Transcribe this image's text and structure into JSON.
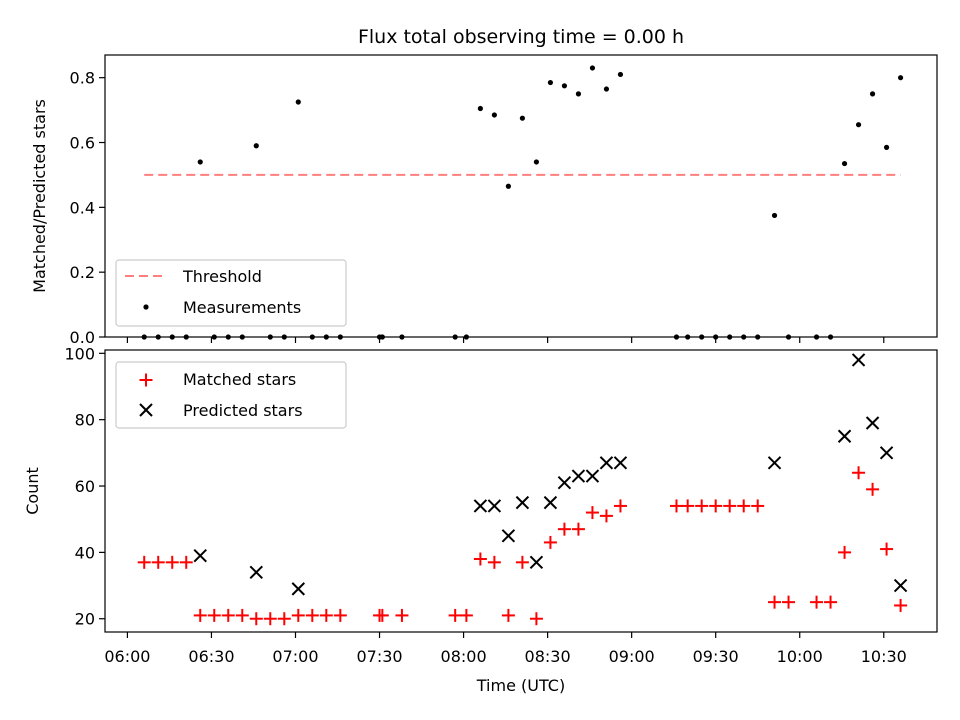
{
  "chart_data": [
    {
      "type": "scatter",
      "title": "Flux total observing time = 0.00 h",
      "xlabel": "",
      "ylabel": "Matched/Predicted stars",
      "ylim": [
        0,
        0.87
      ],
      "yticks": [
        "0.0",
        "0.2",
        "0.4",
        "0.6",
        "0.8"
      ],
      "ytick_values": [
        0,
        0.2,
        0.4,
        0.6,
        0.8
      ],
      "legend_position": "lower-left",
      "threshold": {
        "name": "Threshold",
        "value": 0.5,
        "x_start": "06:06",
        "x_end": "10:36",
        "color": "#ff7f7f"
      },
      "series": [
        {
          "name": "Measurements",
          "color": "#000000",
          "points": [
            [
              "06:06",
              0
            ],
            [
              "06:11",
              0
            ],
            [
              "06:16",
              0
            ],
            [
              "06:21",
              0
            ],
            [
              "06:26",
              0.54
            ],
            [
              "06:31",
              0
            ],
            [
              "06:36",
              0
            ],
            [
              "06:41",
              0
            ],
            [
              "06:46",
              0.59
            ],
            [
              "06:51",
              0
            ],
            [
              "06:56",
              0
            ],
            [
              "07:01",
              0.725
            ],
            [
              "07:06",
              0
            ],
            [
              "07:11",
              0
            ],
            [
              "07:16",
              0
            ],
            [
              "07:30",
              0
            ],
            [
              "07:31",
              0
            ],
            [
              "07:38",
              0
            ],
            [
              "07:57",
              0
            ],
            [
              "08:01",
              0
            ],
            [
              "08:06",
              0.705
            ],
            [
              "08:11",
              0.685
            ],
            [
              "08:16",
              0.465
            ],
            [
              "08:21",
              0.675
            ],
            [
              "08:26",
              0.54
            ],
            [
              "08:31",
              0.785
            ],
            [
              "08:36",
              0.775
            ],
            [
              "08:41",
              0.75
            ],
            [
              "08:46",
              0.83
            ],
            [
              "08:51",
              0.765
            ],
            [
              "08:56",
              0.81
            ],
            [
              "09:16",
              0
            ],
            [
              "09:20",
              0
            ],
            [
              "09:25",
              0
            ],
            [
              "09:30",
              0
            ],
            [
              "09:35",
              0
            ],
            [
              "09:40",
              0
            ],
            [
              "09:45",
              0
            ],
            [
              "09:51",
              0.375
            ],
            [
              "09:56",
              0
            ],
            [
              "10:06",
              0
            ],
            [
              "10:11",
              0
            ],
            [
              "10:16",
              0.535
            ],
            [
              "10:21",
              0.655
            ],
            [
              "10:26",
              0.75
            ],
            [
              "10:31",
              0.585
            ],
            [
              "10:36",
              0.8
            ]
          ]
        }
      ]
    },
    {
      "type": "scatter",
      "title": "",
      "xlabel": "Time (UTC)",
      "ylabel": "Count",
      "xlim": [
        "05:52",
        "10:49"
      ],
      "ylim": [
        16,
        101
      ],
      "xticks": [
        "06:00",
        "06:30",
        "07:00",
        "07:30",
        "08:00",
        "08:30",
        "09:00",
        "09:30",
        "10:00",
        "10:30"
      ],
      "yticks": [
        "20",
        "40",
        "60",
        "80",
        "100"
      ],
      "ytick_values": [
        20,
        40,
        60,
        80,
        100
      ],
      "legend_position": "top-left",
      "series": [
        {
          "name": "Matched stars",
          "marker": "plus",
          "color": "#ff0000",
          "points": [
            [
              "06:06",
              37
            ],
            [
              "06:11",
              37
            ],
            [
              "06:16",
              37
            ],
            [
              "06:21",
              37
            ],
            [
              "06:26",
              21
            ],
            [
              "06:31",
              21
            ],
            [
              "06:36",
              21
            ],
            [
              "06:41",
              21
            ],
            [
              "06:46",
              20
            ],
            [
              "06:51",
              20
            ],
            [
              "06:56",
              20
            ],
            [
              "07:01",
              21
            ],
            [
              "07:06",
              21
            ],
            [
              "07:11",
              21
            ],
            [
              "07:16",
              21
            ],
            [
              "07:30",
              21
            ],
            [
              "07:31",
              21
            ],
            [
              "07:38",
              21
            ],
            [
              "07:57",
              21
            ],
            [
              "08:01",
              21
            ],
            [
              "08:06",
              38
            ],
            [
              "08:11",
              37
            ],
            [
              "08:16",
              21
            ],
            [
              "08:21",
              37
            ],
            [
              "08:26",
              20
            ],
            [
              "08:31",
              43
            ],
            [
              "08:36",
              47
            ],
            [
              "08:41",
              47
            ],
            [
              "08:46",
              52
            ],
            [
              "08:51",
              51
            ],
            [
              "08:56",
              54
            ],
            [
              "09:16",
              54
            ],
            [
              "09:20",
              54
            ],
            [
              "09:25",
              54
            ],
            [
              "09:30",
              54
            ],
            [
              "09:35",
              54
            ],
            [
              "09:40",
              54
            ],
            [
              "09:45",
              54
            ],
            [
              "09:51",
              25
            ],
            [
              "09:56",
              25
            ],
            [
              "10:06",
              25
            ],
            [
              "10:11",
              25
            ],
            [
              "10:16",
              40
            ],
            [
              "10:21",
              64
            ],
            [
              "10:26",
              59
            ],
            [
              "10:31",
              41
            ],
            [
              "10:36",
              24
            ]
          ]
        },
        {
          "name": "Predicted stars",
          "marker": "x",
          "color": "#000000",
          "points": [
            [
              "06:26",
              39
            ],
            [
              "06:46",
              34
            ],
            [
              "07:01",
              29
            ],
            [
              "08:06",
              54
            ],
            [
              "08:11",
              54
            ],
            [
              "08:16",
              45
            ],
            [
              "08:21",
              55
            ],
            [
              "08:26",
              37
            ],
            [
              "08:31",
              55
            ],
            [
              "08:36",
              61
            ],
            [
              "08:41",
              63
            ],
            [
              "08:46",
              63
            ],
            [
              "08:51",
              67
            ],
            [
              "08:56",
              67
            ],
            [
              "09:51",
              67
            ],
            [
              "10:16",
              75
            ],
            [
              "10:21",
              98
            ],
            [
              "10:26",
              79
            ],
            [
              "10:31",
              70
            ],
            [
              "10:36",
              30
            ]
          ]
        }
      ]
    }
  ]
}
